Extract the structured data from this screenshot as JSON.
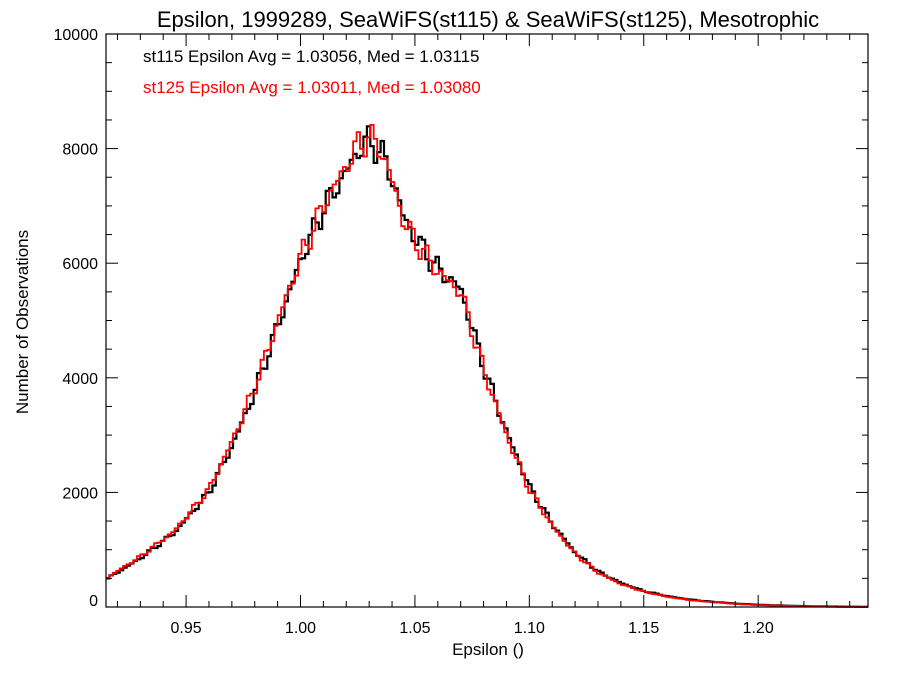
{
  "chart_data": {
    "type": "line",
    "title": "Epsilon, 1999289, SeaWiFS(st115) & SeaWiFS(st125), Mesotrophic",
    "xlabel": "Epsilon ()",
    "ylabel": "Number of Observations",
    "xlim": [
      0.915,
      1.248
    ],
    "ylim": [
      0,
      10000
    ],
    "x_ticks": [
      0.95,
      1.0,
      1.05,
      1.1,
      1.15,
      1.2
    ],
    "x_tick_labels": [
      "0.95",
      "1.00",
      "1.05",
      "1.10",
      "1.15",
      "1.20"
    ],
    "y_ticks": [
      0,
      2000,
      4000,
      6000,
      8000,
      10000
    ],
    "y_tick_labels": [
      "0",
      "2000",
      "4000",
      "6000",
      "8000",
      "10000"
    ],
    "grid": false,
    "annotations": [
      {
        "text": "st115 Epsilon Avg = 1.03056, Med = 1.03115",
        "color": "#000000"
      },
      {
        "text": "st125 Epsilon Avg = 1.03011, Med = 1.03080",
        "color": "#ff0000"
      }
    ],
    "series": [
      {
        "color": "#000000",
        "x": [
          0.915,
          0.93,
          0.945,
          0.96,
          0.97,
          0.98,
          0.99,
          1.0,
          1.01,
          1.02,
          1.025,
          1.03,
          1.035,
          1.04,
          1.045,
          1.05,
          1.06,
          1.07,
          1.08,
          1.09,
          1.1,
          1.11,
          1.12,
          1.13,
          1.14,
          1.15,
          1.16,
          1.17,
          1.18,
          1.19,
          1.2,
          1.21,
          1.22,
          1.23,
          1.24,
          1.248
        ],
        "y": [
          480,
          850,
          1300,
          2000,
          2800,
          3750,
          4900,
          6050,
          6950,
          7600,
          7950,
          8150,
          7950,
          7500,
          6800,
          6450,
          5900,
          5550,
          4200,
          3050,
          2100,
          1450,
          950,
          620,
          420,
          280,
          190,
          130,
          90,
          60,
          40,
          25,
          15,
          10,
          5,
          3
        ]
      },
      {
        "color": "#ff0000",
        "x": [
          0.915,
          0.93,
          0.945,
          0.96,
          0.97,
          0.98,
          0.99,
          1.0,
          1.01,
          1.02,
          1.025,
          1.03,
          1.035,
          1.04,
          1.045,
          1.05,
          1.06,
          1.07,
          1.08,
          1.09,
          1.1,
          1.11,
          1.12,
          1.13,
          1.14,
          1.15,
          1.16,
          1.17,
          1.18,
          1.19,
          1.2,
          1.21,
          1.22,
          1.23,
          1.24,
          1.248
        ],
        "y": [
          500,
          880,
          1330,
          2050,
          2880,
          3830,
          4980,
          6100,
          7000,
          7700,
          8050,
          8200,
          8000,
          7450,
          6750,
          6400,
          5850,
          5500,
          4150,
          3000,
          2050,
          1420,
          930,
          600,
          400,
          270,
          180,
          120,
          85,
          55,
          35,
          22,
          14,
          9,
          5,
          3
        ]
      }
    ]
  }
}
